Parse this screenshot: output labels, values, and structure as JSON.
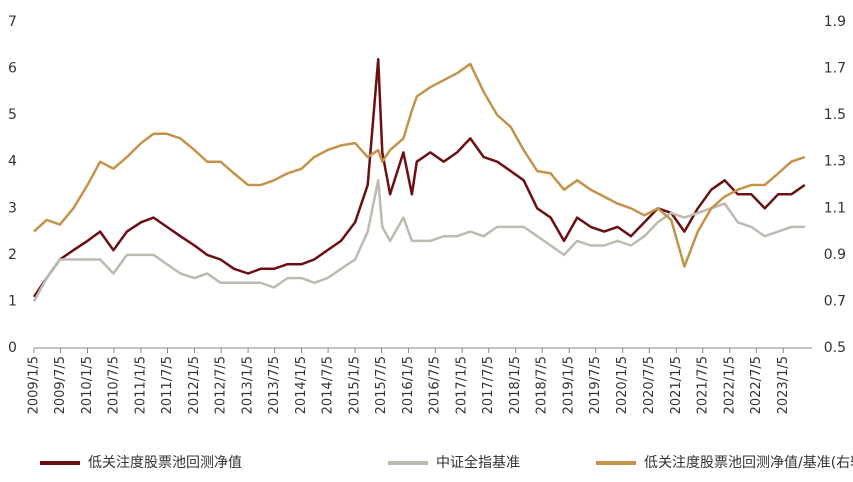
{
  "chart_data": {
    "type": "line",
    "x": [
      "2009/1/5",
      "2009/4/1",
      "2009/7/1",
      "2009/10/1",
      "2010/1/5",
      "2010/4/1",
      "2010/7/1",
      "2010/10/1",
      "2011/1/5",
      "2011/4/1",
      "2011/7/1",
      "2011/10/1",
      "2012/1/5",
      "2012/4/1",
      "2012/7/1",
      "2012/10/1",
      "2013/1/5",
      "2013/4/1",
      "2013/7/1",
      "2013/10/1",
      "2014/1/5",
      "2014/4/1",
      "2014/7/1",
      "2014/10/1",
      "2015/1/5",
      "2015/4/1",
      "2015/6/12",
      "2015/7/10",
      "2015/9/1",
      "2015/12/1",
      "2016/1/28",
      "2016/3/1",
      "2016/6/1",
      "2016/9/1",
      "2016/12/1",
      "2017/3/1",
      "2017/6/1",
      "2017/9/1",
      "2017/12/1",
      "2018/3/1",
      "2018/6/1",
      "2018/9/1",
      "2018/12/1",
      "2019/3/1",
      "2019/6/1",
      "2019/9/1",
      "2019/12/1",
      "2020/3/1",
      "2020/6/1",
      "2020/9/1",
      "2020/12/1",
      "2021/3/1",
      "2021/6/1",
      "2021/9/1",
      "2021/12/1",
      "2022/3/1",
      "2022/6/1",
      "2022/9/1",
      "2022/12/1",
      "2023/3/1",
      "2023/6/1"
    ],
    "series": [
      {
        "name": "低关注度股票池回测净值",
        "color": "#6b0f14",
        "values": [
          1.1,
          1.5,
          1.9,
          2.1,
          2.3,
          2.5,
          2.1,
          2.5,
          2.7,
          2.8,
          2.6,
          2.4,
          2.2,
          2.0,
          1.9,
          1.7,
          1.6,
          1.7,
          1.7,
          1.8,
          1.8,
          1.9,
          2.1,
          2.3,
          2.7,
          3.5,
          6.2,
          4.2,
          3.3,
          4.2,
          3.3,
          4.0,
          4.2,
          4.0,
          4.2,
          4.5,
          4.1,
          4.0,
          3.8,
          3.6,
          3.0,
          2.8,
          2.3,
          2.8,
          2.6,
          2.5,
          2.6,
          2.4,
          2.7,
          3.0,
          2.9,
          2.5,
          3.0,
          3.4,
          3.6,
          3.3,
          3.3,
          3.0,
          3.3,
          3.3,
          3.5
        ]
      },
      {
        "name": "中证全指基准",
        "color": "#bdbab0",
        "values": [
          1.0,
          1.5,
          1.9,
          1.9,
          1.9,
          1.9,
          1.6,
          2.0,
          2.0,
          2.0,
          1.8,
          1.6,
          1.5,
          1.6,
          1.4,
          1.4,
          1.4,
          1.4,
          1.3,
          1.5,
          1.5,
          1.4,
          1.5,
          1.7,
          1.9,
          2.5,
          3.6,
          2.6,
          2.3,
          2.8,
          2.3,
          2.3,
          2.3,
          2.4,
          2.4,
          2.5,
          2.4,
          2.6,
          2.6,
          2.6,
          2.4,
          2.2,
          2.0,
          2.3,
          2.2,
          2.2,
          2.3,
          2.2,
          2.4,
          2.7,
          2.9,
          2.8,
          2.9,
          3.0,
          3.1,
          2.7,
          2.6,
          2.4,
          2.5,
          2.6,
          2.6
        ]
      },
      {
        "name": "低关注度股票池回测净值/基准(右轴)",
        "color": "#c4934a",
        "axis": "y2",
        "values": [
          1.0,
          1.05,
          1.03,
          1.1,
          1.2,
          1.3,
          1.27,
          1.32,
          1.38,
          1.42,
          1.42,
          1.4,
          1.35,
          1.3,
          1.3,
          1.25,
          1.2,
          1.2,
          1.22,
          1.25,
          1.27,
          1.32,
          1.35,
          1.37,
          1.38,
          1.32,
          1.35,
          1.3,
          1.35,
          1.4,
          1.52,
          1.58,
          1.62,
          1.65,
          1.68,
          1.72,
          1.6,
          1.5,
          1.45,
          1.35,
          1.26,
          1.25,
          1.18,
          1.22,
          1.18,
          1.15,
          1.12,
          1.1,
          1.07,
          1.1,
          1.05,
          0.85,
          1.0,
          1.1,
          1.15,
          1.18,
          1.2,
          1.2,
          1.25,
          1.3,
          1.32
        ]
      }
    ],
    "xlim": [
      "2009/1/5",
      "2023/7/20"
    ],
    "xticks": [
      "2009/1/5",
      "2009/7/5",
      "2010/1/5",
      "2010/7/5",
      "2011/1/5",
      "2011/7/5",
      "2012/1/5",
      "2012/7/5",
      "2013/1/5",
      "2013/7/5",
      "2014/1/5",
      "2014/7/5",
      "2015/1/5",
      "2015/7/5",
      "2016/1/5",
      "2016/7/5",
      "2017/1/5",
      "2017/7/5",
      "2018/1/5",
      "2018/7/5",
      "2019/1/5",
      "2019/7/5",
      "2020/1/5",
      "2020/7/5",
      "2021/1/5",
      "2021/7/5",
      "2022/1/5",
      "2022/7/5",
      "2023/1/5"
    ],
    "ylim": [
      0,
      7
    ],
    "yticks": [
      0,
      1,
      2,
      3,
      4,
      5,
      6,
      7
    ],
    "y2lim": [
      0.5,
      1.9
    ],
    "y2ticks": [
      0.5,
      0.7,
      0.9,
      1.1,
      1.3,
      1.5,
      1.7,
      1.9
    ]
  }
}
